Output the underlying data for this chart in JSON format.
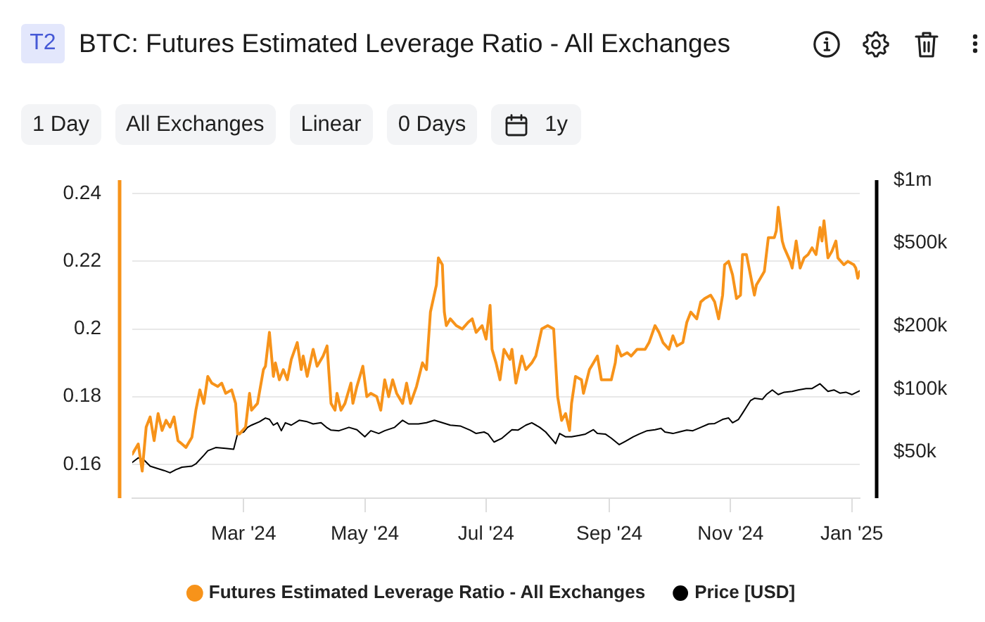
{
  "chart_data": {
    "type": "line",
    "title": "BTC: Futures Estimated Leverage Ratio - All Exchanges",
    "annotations": [
      "T2",
      "1 Day",
      "All Exchanges",
      "Linear",
      "0 Days",
      "1y"
    ],
    "xlim": [
      "2024-01-05",
      "2025-01-05"
    ],
    "xticks": [
      {
        "value": "2024-03-01",
        "label": "Mar '24"
      },
      {
        "value": "2024-05-01",
        "label": "May '24"
      },
      {
        "value": "2024-07-01",
        "label": "Jul '24"
      },
      {
        "value": "2024-09-01",
        "label": "Sep '24"
      },
      {
        "value": "2024-11-01",
        "label": "Nov '24"
      },
      {
        "value": "2025-01-01",
        "label": "Jan '25"
      }
    ],
    "ylim": [
      0.15,
      0.244
    ],
    "yticks": [
      0.16,
      0.18,
      0.2,
      0.22,
      0.24
    ],
    "y2lim": [
      30000,
      1000000
    ],
    "y2ticks": [
      {
        "value": 50000,
        "label": "$50k"
      },
      {
        "value": 100000,
        "label": "$100k"
      },
      {
        "value": 200000,
        "label": "$200k"
      },
      {
        "value": 500000,
        "label": "$500k"
      },
      {
        "value": 1000000,
        "label": "$1m"
      }
    ],
    "log": "y2",
    "grid": "y",
    "legend": "bottom",
    "marker": "none",
    "series": [
      {
        "name": "Futures Estimated Leverage Ratio - All Exchanges",
        "color": "#f7931a",
        "x": [
          "2024-01-05",
          "2024-01-08",
          "2024-01-10",
          "2024-01-12",
          "2024-01-14",
          "2024-01-16",
          "2024-01-18",
          "2024-01-20",
          "2024-01-22",
          "2024-01-24",
          "2024-01-26",
          "2024-01-28",
          "2024-01-30",
          "2024-02-01",
          "2024-02-04",
          "2024-02-06",
          "2024-02-08",
          "2024-02-10",
          "2024-02-12",
          "2024-02-14",
          "2024-02-17",
          "2024-02-19",
          "2024-02-21",
          "2024-02-24",
          "2024-02-26",
          "2024-02-27",
          "2024-02-28",
          "2024-03-02",
          "2024-03-04",
          "2024-03-05",
          "2024-03-08",
          "2024-03-11",
          "2024-03-12",
          "2024-03-14",
          "2024-03-16",
          "2024-03-17",
          "2024-03-19",
          "2024-03-21",
          "2024-03-23",
          "2024-03-25",
          "2024-03-28",
          "2024-03-30",
          "2024-03-31",
          "2024-04-02",
          "2024-04-05",
          "2024-04-07",
          "2024-04-10",
          "2024-04-12",
          "2024-04-14",
          "2024-04-16",
          "2024-04-17",
          "2024-04-19",
          "2024-04-21",
          "2024-04-24",
          "2024-04-25",
          "2024-04-27",
          "2024-04-30",
          "2024-05-02",
          "2024-05-04",
          "2024-05-07",
          "2024-05-09",
          "2024-05-11",
          "2024-05-13",
          "2024-05-15",
          "2024-05-17",
          "2024-05-20",
          "2024-05-22",
          "2024-05-24",
          "2024-05-27",
          "2024-05-30",
          "2024-06-01",
          "2024-06-03",
          "2024-06-06",
          "2024-06-07",
          "2024-06-09",
          "2024-06-10",
          "2024-06-11",
          "2024-06-13",
          "2024-06-16",
          "2024-06-19",
          "2024-06-22",
          "2024-06-24",
          "2024-06-26",
          "2024-06-29",
          "2024-07-01",
          "2024-07-03",
          "2024-07-04",
          "2024-07-06",
          "2024-07-08",
          "2024-07-10",
          "2024-07-13",
          "2024-07-14",
          "2024-07-16",
          "2024-07-19",
          "2024-07-21",
          "2024-07-24",
          "2024-07-26",
          "2024-07-29",
          "2024-08-01",
          "2024-08-04",
          "2024-08-05",
          "2024-08-06",
          "2024-08-08",
          "2024-08-10",
          "2024-08-12",
          "2024-08-13",
          "2024-08-15",
          "2024-08-18",
          "2024-08-19",
          "2024-08-22",
          "2024-08-24",
          "2024-08-26",
          "2024-08-28",
          "2024-08-30",
          "2024-09-02",
          "2024-09-04",
          "2024-09-05",
          "2024-09-07",
          "2024-09-10",
          "2024-09-12",
          "2024-09-15",
          "2024-09-19",
          "2024-09-21",
          "2024-09-24",
          "2024-09-26",
          "2024-09-28",
          "2024-10-01",
          "2024-10-03",
          "2024-10-05",
          "2024-10-08",
          "2024-10-10",
          "2024-10-12",
          "2024-10-15",
          "2024-10-17",
          "2024-10-19",
          "2024-10-22",
          "2024-10-24",
          "2024-10-26",
          "2024-10-28",
          "2024-10-29",
          "2024-10-31",
          "2024-11-02",
          "2024-11-04",
          "2024-11-06",
          "2024-11-07",
          "2024-11-09",
          "2024-11-11",
          "2024-11-13",
          "2024-11-14",
          "2024-11-16",
          "2024-11-18",
          "2024-11-20",
          "2024-11-23",
          "2024-11-24",
          "2024-11-25",
          "2024-11-27",
          "2024-11-28",
          "2024-12-01",
          "2024-12-02",
          "2024-12-04",
          "2024-12-06",
          "2024-12-08",
          "2024-12-10",
          "2024-12-12",
          "2024-12-14",
          "2024-12-16",
          "2024-12-17",
          "2024-12-18",
          "2024-12-20",
          "2024-12-22",
          "2024-12-24",
          "2024-12-25",
          "2024-12-28",
          "2024-12-30",
          "2025-01-02",
          "2025-01-03",
          "2025-01-04",
          "2025-01-05"
        ],
        "values": [
          0.163,
          0.166,
          0.158,
          0.171,
          0.174,
          0.167,
          0.175,
          0.17,
          0.173,
          0.171,
          0.174,
          0.167,
          0.166,
          0.165,
          0.168,
          0.176,
          0.182,
          0.178,
          0.186,
          0.184,
          0.183,
          0.184,
          0.181,
          0.182,
          0.178,
          0.169,
          0.169,
          0.171,
          0.181,
          0.176,
          0.178,
          0.188,
          0.189,
          0.199,
          0.186,
          0.19,
          0.185,
          0.188,
          0.185,
          0.191,
          0.196,
          0.188,
          0.192,
          0.186,
          0.194,
          0.189,
          0.192,
          0.195,
          0.178,
          0.176,
          0.181,
          0.176,
          0.178,
          0.184,
          0.178,
          0.183,
          0.189,
          0.18,
          0.181,
          0.18,
          0.176,
          0.185,
          0.18,
          0.185,
          0.181,
          0.178,
          0.184,
          0.178,
          0.183,
          0.19,
          0.188,
          0.205,
          0.213,
          0.221,
          0.219,
          0.205,
          0.201,
          0.203,
          0.201,
          0.2,
          0.202,
          0.203,
          0.199,
          0.201,
          0.197,
          0.207,
          0.194,
          0.19,
          0.185,
          0.194,
          0.191,
          0.194,
          0.184,
          0.192,
          0.188,
          0.19,
          0.192,
          0.2,
          0.201,
          0.2,
          0.19,
          0.18,
          0.173,
          0.175,
          0.17,
          0.178,
          0.186,
          0.185,
          0.181,
          0.188,
          0.19,
          0.192,
          0.185,
          0.185,
          0.185,
          0.19,
          0.195,
          0.192,
          0.193,
          0.192,
          0.194,
          0.194,
          0.196,
          0.201,
          0.199,
          0.196,
          0.194,
          0.198,
          0.195,
          0.196,
          0.202,
          0.205,
          0.203,
          0.208,
          0.209,
          0.21,
          0.208,
          0.203,
          0.21,
          0.219,
          0.22,
          0.216,
          0.209,
          0.21,
          0.222,
          0.222,
          0.216,
          0.21,
          0.213,
          0.215,
          0.217,
          0.227,
          0.227,
          0.229,
          0.236,
          0.226,
          0.224,
          0.22,
          0.218,
          0.226,
          0.218,
          0.221,
          0.222,
          0.224,
          0.222,
          0.23,
          0.226,
          0.232,
          0.221,
          0.223,
          0.226,
          0.221,
          0.219,
          0.22,
          0.219,
          0.218,
          0.215,
          0.217
        ]
      },
      {
        "name": "Price [USD]",
        "color": "#000000",
        "axis": "y2",
        "x": [
          "2024-01-05",
          "2024-01-08",
          "2024-01-11",
          "2024-01-14",
          "2024-01-17",
          "2024-01-21",
          "2024-01-24",
          "2024-01-27",
          "2024-01-30",
          "2024-02-04",
          "2024-02-06",
          "2024-02-10",
          "2024-02-12",
          "2024-02-16",
          "2024-02-21",
          "2024-02-25",
          "2024-02-27",
          "2024-03-01",
          "2024-03-03",
          "2024-03-05",
          "2024-03-09",
          "2024-03-12",
          "2024-03-14",
          "2024-03-16",
          "2024-03-18",
          "2024-03-20",
          "2024-03-22",
          "2024-03-25",
          "2024-03-29",
          "2024-04-02",
          "2024-04-05",
          "2024-04-09",
          "2024-04-12",
          "2024-04-14",
          "2024-04-18",
          "2024-04-23",
          "2024-04-27",
          "2024-05-01",
          "2024-05-04",
          "2024-05-08",
          "2024-05-11",
          "2024-05-16",
          "2024-05-20",
          "2024-05-23",
          "2024-05-28",
          "2024-06-01",
          "2024-06-05",
          "2024-06-09",
          "2024-06-13",
          "2024-06-18",
          "2024-06-23",
          "2024-06-26",
          "2024-06-30",
          "2024-07-02",
          "2024-07-05",
          "2024-07-09",
          "2024-07-14",
          "2024-07-17",
          "2024-07-21",
          "2024-07-24",
          "2024-07-28",
          "2024-07-31",
          "2024-08-04",
          "2024-08-05",
          "2024-08-07",
          "2024-08-10",
          "2024-08-13",
          "2024-08-17",
          "2024-08-20",
          "2024-08-24",
          "2024-08-26",
          "2024-08-30",
          "2024-09-02",
          "2024-09-06",
          "2024-09-09",
          "2024-09-13",
          "2024-09-16",
          "2024-09-20",
          "2024-09-24",
          "2024-09-27",
          "2024-09-29",
          "2024-10-03",
          "2024-10-06",
          "2024-10-10",
          "2024-10-13",
          "2024-10-17",
          "2024-10-21",
          "2024-10-24",
          "2024-10-28",
          "2024-10-31",
          "2024-11-02",
          "2024-11-05",
          "2024-11-07",
          "2024-11-11",
          "2024-11-13",
          "2024-11-17",
          "2024-11-19",
          "2024-11-22",
          "2024-11-25",
          "2024-11-28",
          "2024-12-02",
          "2024-12-05",
          "2024-12-09",
          "2024-12-12",
          "2024-12-16",
          "2024-12-20",
          "2024-12-23",
          "2024-12-26",
          "2024-12-29",
          "2025-01-01",
          "2025-01-05"
        ],
        "values": [
          44500,
          46800,
          45600,
          42700,
          41800,
          40700,
          39700,
          41100,
          42200,
          42700,
          43800,
          48100,
          50600,
          52400,
          51900,
          51400,
          61200,
          62200,
          65500,
          67100,
          69700,
          72600,
          71500,
          67100,
          68900,
          63100,
          68900,
          67100,
          70800,
          69700,
          68000,
          68900,
          65200,
          63500,
          63100,
          65500,
          63800,
          59000,
          63100,
          61200,
          63100,
          65500,
          70800,
          68000,
          68000,
          68900,
          70800,
          68900,
          67100,
          66500,
          63500,
          61200,
          62200,
          60800,
          55700,
          58100,
          63800,
          63500,
          67100,
          68900,
          65500,
          62200,
          56200,
          54700,
          61200,
          59000,
          59000,
          60000,
          60800,
          63800,
          61200,
          60800,
          58100,
          54100,
          56100,
          59000,
          60800,
          63100,
          63800,
          64800,
          62200,
          61200,
          62200,
          63500,
          63100,
          65500,
          68000,
          68300,
          71500,
          72600,
          68900,
          71500,
          76500,
          87900,
          90200,
          89200,
          94000,
          98900,
          94000,
          96500,
          97300,
          98900,
          100500,
          100500,
          105900,
          97300,
          98900,
          95500,
          96500,
          94000,
          98000
        ]
      }
    ]
  }
}
